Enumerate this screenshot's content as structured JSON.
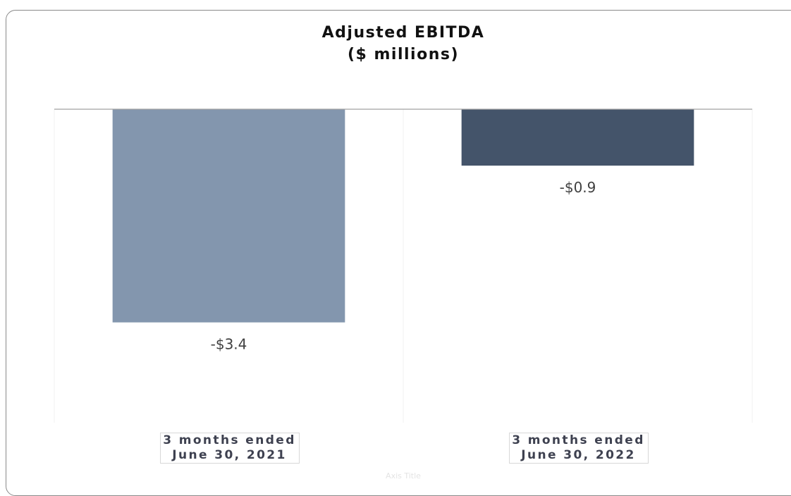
{
  "chart_data": {
    "type": "bar",
    "title": "Adjusted EBITDA",
    "subtitle": "($ millions)",
    "x_label": "Axis Title",
    "categories": [
      "3 months ended\nJune 30, 2021",
      "3 months ended\nJune 30, 2022"
    ],
    "values": [
      -3.4,
      -0.9
    ],
    "value_labels": [
      "-$3.4",
      "-$0.9"
    ],
    "colors": [
      "#8396ae",
      "#44546a"
    ],
    "ylim": [
      -5,
      0
    ],
    "grid": false
  }
}
